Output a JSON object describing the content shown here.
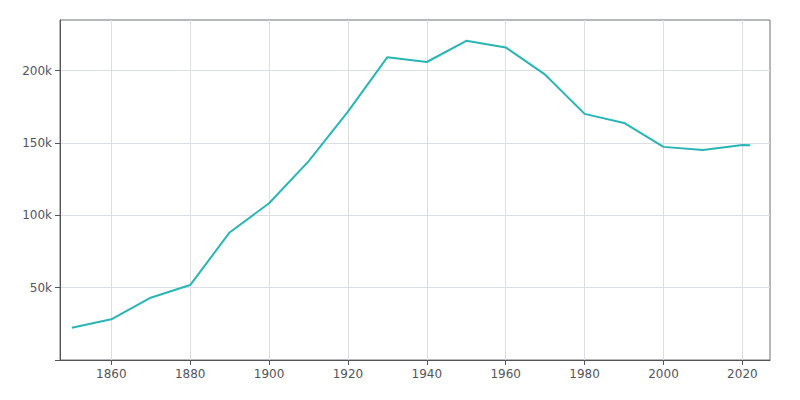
{
  "chart_data": {
    "type": "line",
    "x": [
      1850,
      1860,
      1870,
      1880,
      1890,
      1900,
      1910,
      1920,
      1930,
      1940,
      1950,
      1960,
      1970,
      1980,
      1990,
      2000,
      2010,
      2020,
      2022
    ],
    "values": [
      22271,
      28119,
      43051,
      51792,
      88143,
      108374,
      137249,
      171717,
      209326,
      205967,
      220583,
      216038,
      197208,
      170105,
      163860,
      147306,
      145170,
      148620,
      148458
    ],
    "color": "#2ab5b5",
    "xlim": [
      1847,
      2027
    ],
    "xticks": [
      1860,
      1880,
      1900,
      1920,
      1940,
      1960,
      1980,
      2000,
      2020
    ],
    "ylim": [
      0,
      235000
    ],
    "yticks": [
      {
        "value": 0,
        "label": ""
      },
      {
        "value": 50000,
        "label": "50k"
      },
      {
        "value": 100000,
        "label": "100k"
      },
      {
        "value": 150000,
        "label": "150k"
      },
      {
        "value": 200000,
        "label": "200k"
      }
    ],
    "grid": true
  }
}
